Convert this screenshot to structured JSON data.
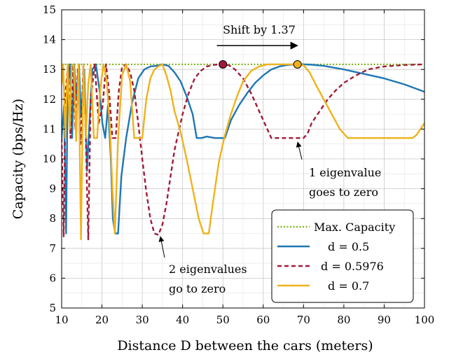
{
  "chart_data": {
    "type": "line",
    "xlabel": "Distance D between the cars (meters)",
    "ylabel": "Capacity (bps/Hz)",
    "xlim": [
      10,
      100
    ],
    "ylim": [
      5,
      15
    ],
    "xticks": [
      10,
      20,
      30,
      40,
      50,
      60,
      70,
      80,
      90,
      100
    ],
    "yticks": [
      5,
      6,
      7,
      8,
      9,
      10,
      11,
      12,
      13,
      14,
      15
    ],
    "grid": true,
    "legend_position": "bottom-right",
    "series": [
      {
        "name": "Max. Capacity",
        "style": "dotted",
        "color": "#7ab317",
        "x": [
          10,
          100
        ],
        "y": [
          13.17,
          13.17
        ]
      },
      {
        "name": "d = 0.5",
        "style": "solid",
        "color": "#1f77b4",
        "x": [
          10,
          10.6,
          11.1,
          11.5,
          12.1,
          12.6,
          13.1,
          13.6,
          14.3,
          14.8,
          15.6,
          16.3,
          16.7,
          17.6,
          18.5,
          19.4,
          20.1,
          20.8,
          21.5,
          22.2,
          22.7,
          23.3,
          24.0,
          24.8,
          26.0,
          27.5,
          29.0,
          30.5,
          32.0,
          33.5,
          35.0,
          36.5,
          38.0,
          39.5,
          41.0,
          42.5,
          43.5,
          44.7,
          46,
          48,
          49.5,
          50.5,
          52,
          54,
          56,
          58,
          60,
          62,
          64,
          66,
          68,
          70,
          72,
          75,
          80,
          85,
          90,
          95,
          100
        ],
        "y": [
          10.7,
          11.8,
          7.5,
          12.4,
          13.17,
          10.7,
          13.17,
          12.0,
          13.17,
          11.4,
          13.0,
          9.6,
          10.7,
          13.0,
          13.17,
          12.3,
          11.2,
          10.7,
          11.8,
          10.0,
          8.0,
          7.5,
          7.5,
          9.4,
          10.7,
          11.9,
          12.7,
          13.0,
          13.1,
          13.12,
          13.17,
          13.12,
          12.9,
          12.6,
          12.1,
          11.5,
          10.7,
          10.7,
          10.75,
          10.7,
          10.7,
          10.7,
          11.3,
          11.8,
          12.2,
          12.55,
          12.8,
          13.0,
          13.1,
          13.15,
          13.17,
          13.17,
          13.16,
          13.12,
          13.0,
          12.85,
          12.7,
          12.5,
          12.25
        ]
      },
      {
        "name": "d = 0.5976",
        "style": "dashed",
        "color": "#a01c38",
        "x": [
          10,
          10.5,
          11,
          11.6,
          12.2,
          12.8,
          13.4,
          14.0,
          14.7,
          15.4,
          16.0,
          16.6,
          17.2,
          18.2,
          19.2,
          20.2,
          21.0,
          21.8,
          22.6,
          23.4,
          24.2,
          25.0,
          26.0,
          27.0,
          28.0,
          29.0,
          30.0,
          31.0,
          32.0,
          33.0,
          34.0,
          35.0,
          36.0,
          37.0,
          38.0,
          39.0,
          40.0,
          41.5,
          43.0,
          44.5,
          46.0,
          47.5,
          49.0,
          50.0,
          51.5,
          53.0,
          55.0,
          57.0,
          59.0,
          61.0,
          62.0,
          63.0,
          65,
          67,
          69,
          70,
          71,
          72,
          74,
          76,
          78,
          80,
          83,
          86,
          90,
          95,
          100
        ],
        "y": [
          10.7,
          7.4,
          12.3,
          13.17,
          10.7,
          13.17,
          11.0,
          13.0,
          10.5,
          13.17,
          10.7,
          7.3,
          12.0,
          13.17,
          11.2,
          11.8,
          13.17,
          12.2,
          10.7,
          10.7,
          12.3,
          13.1,
          13.17,
          12.9,
          12.3,
          11.2,
          10.0,
          8.9,
          8.0,
          7.5,
          7.45,
          7.8,
          8.5,
          9.4,
          10.3,
          10.9,
          11.5,
          12.2,
          12.7,
          12.95,
          13.1,
          13.15,
          13.17,
          13.17,
          13.14,
          13.0,
          12.7,
          12.2,
          11.6,
          11.0,
          10.7,
          10.7,
          10.7,
          10.7,
          10.7,
          10.7,
          10.85,
          11.2,
          11.6,
          12.0,
          12.3,
          12.55,
          12.8,
          13.0,
          13.1,
          13.15,
          13.17
        ]
      },
      {
        "name": "d = 0.7",
        "style": "solid",
        "color": "#f0b21c",
        "x": [
          10,
          10.4,
          10.9,
          11.5,
          12.0,
          12.5,
          13.0,
          13.6,
          14.2,
          14.8,
          15.4,
          16.0,
          16.6,
          17.2,
          18.0,
          18.8,
          19.6,
          20.4,
          21.2,
          22.0,
          22.6,
          23.2,
          24.0,
          25.0,
          26.0,
          27.0,
          28.0,
          29.0,
          30.0,
          31.0,
          32.0,
          33.0,
          34.0,
          35.0,
          36.0,
          37.0,
          38.0,
          39.5,
          41.0,
          42.5,
          44.0,
          45.2,
          46.5,
          47.5,
          49.0,
          50.5,
          52.0,
          53.5,
          55.0,
          57.0,
          59.0,
          61.0,
          63.0,
          65.0,
          67.0,
          68.5,
          70.0,
          71.5,
          73.0,
          75.0,
          77.0,
          79.0,
          81.0,
          83.0,
          85.0,
          86.5,
          88,
          90,
          92,
          94,
          96,
          97,
          98,
          99,
          100
        ],
        "y": [
          12.5,
          13.17,
          10.7,
          13.17,
          11.0,
          13.1,
          13.17,
          10.6,
          13.17,
          7.3,
          13.17,
          10.7,
          12.5,
          13.17,
          10.7,
          10.7,
          12.4,
          13.17,
          12.6,
          11.0,
          9.0,
          7.5,
          10.7,
          12.8,
          13.17,
          12.6,
          10.7,
          10.7,
          10.7,
          12.0,
          12.7,
          13.0,
          13.1,
          13.17,
          12.8,
          12.3,
          11.6,
          10.9,
          10.0,
          9.0,
          8.0,
          7.5,
          7.5,
          8.5,
          9.9,
          10.8,
          11.5,
          12.1,
          12.6,
          12.95,
          13.1,
          13.17,
          13.17,
          13.17,
          13.17,
          13.17,
          13.14,
          12.9,
          12.5,
          12.0,
          11.5,
          11.0,
          10.7,
          10.7,
          10.7,
          10.7,
          10.7,
          10.7,
          10.7,
          10.7,
          10.7,
          10.7,
          10.8,
          11.0,
          11.2
        ]
      }
    ],
    "markers": [
      {
        "x": 50,
        "y": 13.17,
        "color": "#a01c38"
      },
      {
        "x": 68.5,
        "y": 13.17,
        "color": "#f0b21c"
      }
    ],
    "arrow": {
      "x1": 48.5,
      "x2": 68.5,
      "y": 13.8
    },
    "annotations": [
      {
        "id": "shift",
        "text": "Shift by 1.37"
      },
      {
        "id": "e1_line1",
        "text": "1 eigenvalue"
      },
      {
        "id": "e1_line2",
        "text": "goes to zero"
      },
      {
        "id": "e2_line1",
        "text": "2 eigenvalues"
      },
      {
        "id": "e2_line2",
        "text": "go to zero"
      }
    ]
  }
}
